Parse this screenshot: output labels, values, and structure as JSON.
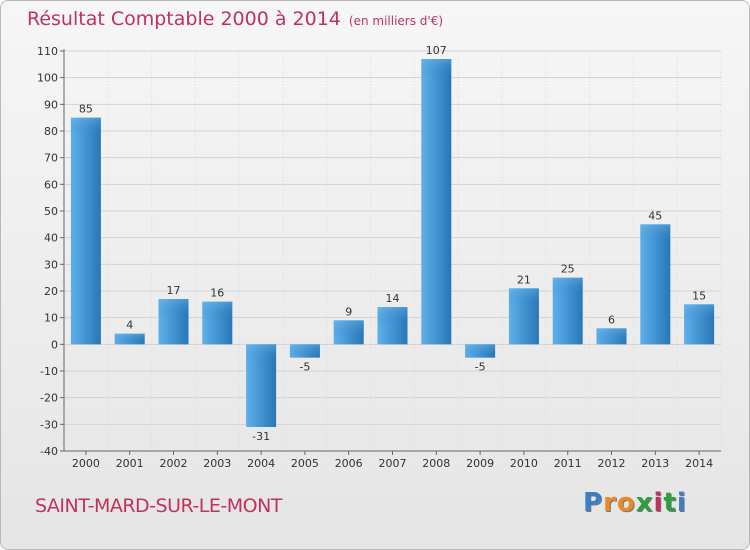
{
  "chart_data": {
    "type": "bar",
    "title": "Résultat Comptable 2000 à 2014",
    "subtitle": "(en milliers d'€)",
    "xlabel": "",
    "ylabel": "",
    "categories": [
      "2000",
      "2001",
      "2002",
      "2003",
      "2004",
      "2005",
      "2006",
      "2007",
      "2008",
      "2009",
      "2010",
      "2011",
      "2012",
      "2013",
      "2014"
    ],
    "values": [
      85,
      4,
      17,
      16,
      -31,
      -5,
      9,
      14,
      107,
      -5,
      21,
      25,
      6,
      45,
      15
    ],
    "ylim": [
      -40,
      110
    ],
    "yticks": [
      110,
      100,
      90,
      80,
      70,
      60,
      50,
      40,
      30,
      20,
      10,
      0,
      -10,
      -20,
      -30,
      -40
    ],
    "grid": true,
    "bar_color": "#3d8fd0"
  },
  "footer": {
    "place": "SAINT-MARD-SUR-LE-MONT",
    "logo_letters": [
      "P",
      "r",
      "o",
      "x",
      "i",
      "t",
      "i"
    ],
    "logo_colors": [
      "#3b7fc4",
      "#e8892a",
      "#e8892a",
      "#2f9e3c",
      "#c0325c",
      "#2f9e3c",
      "#3b7fc4"
    ]
  }
}
